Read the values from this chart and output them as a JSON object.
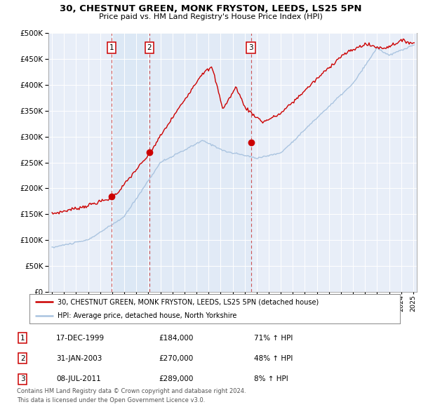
{
  "title": "30, CHESTNUT GREEN, MONK FRYSTON, LEEDS, LS25 5PN",
  "subtitle": "Price paid vs. HM Land Registry's House Price Index (HPI)",
  "legend_line1": "30, CHESTNUT GREEN, MONK FRYSTON, LEEDS, LS25 5PN (detached house)",
  "legend_line2": "HPI: Average price, detached house, North Yorkshire",
  "footnote1": "Contains HM Land Registry data © Crown copyright and database right 2024.",
  "footnote2": "This data is licensed under the Open Government Licence v3.0.",
  "transactions": [
    {
      "num": 1,
      "date": "17-DEC-1999",
      "price": 184000,
      "hpi_pct": "71%",
      "x_year": 1999.96
    },
    {
      "num": 2,
      "date": "31-JAN-2003",
      "price": 270000,
      "hpi_pct": "48%",
      "x_year": 2003.08
    },
    {
      "num": 3,
      "date": "08-JUL-2011",
      "price": 289000,
      "hpi_pct": "8%",
      "x_year": 2011.52
    }
  ],
  "property_color": "#cc0000",
  "hpi_color": "#aac4e0",
  "shade_color": "#dce8f5",
  "background_color": "#e8eef8",
  "ylim": [
    0,
    500000
  ],
  "xlim": [
    1994.7,
    2025.3
  ]
}
